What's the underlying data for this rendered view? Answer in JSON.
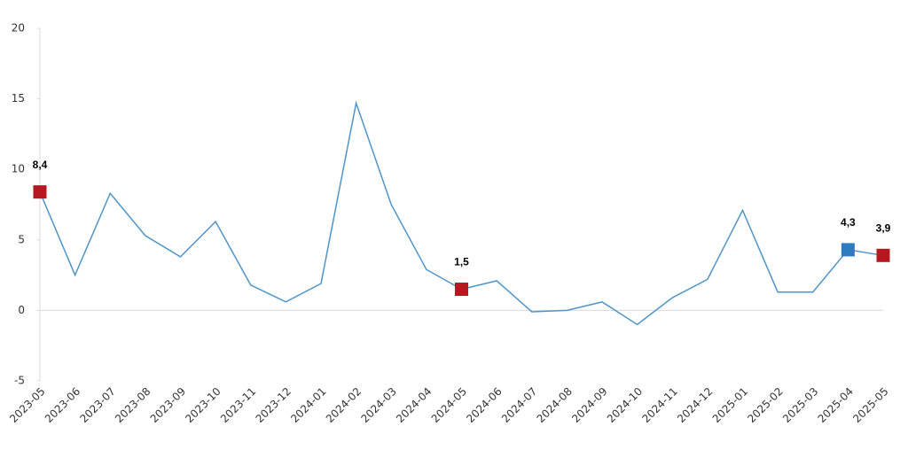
{
  "chart_data": {
    "type": "line",
    "categories": [
      "2023-05",
      "2023-06",
      "2023-07",
      "2023-08",
      "2023-09",
      "2023-10",
      "2023-11",
      "2023-12",
      "2024-01",
      "2024-02",
      "2024-03",
      "2024-04",
      "2024-05",
      "2024-06",
      "2024-07",
      "2024-08",
      "2024-09",
      "2024-10",
      "2024-11",
      "2024-12",
      "2025-01",
      "2025-02",
      "2025-03",
      "2025-04",
      "2025-05"
    ],
    "series": [
      {
        "color": "#4f95c8",
        "values": [
          8.4,
          2.5,
          8.3,
          5.3,
          3.8,
          6.3,
          1.8,
          0.6,
          1.9,
          14.7,
          7.5,
          2.9,
          1.5,
          2.1,
          -0.1,
          0.0,
          0.6,
          -1.0,
          0.9,
          2.2,
          7.1,
          1.3,
          1.3,
          4.3,
          3.9
        ],
        "value_labels": [
          "8,4",
          null,
          null,
          null,
          null,
          null,
          null,
          null,
          null,
          null,
          null,
          null,
          "1,5",
          null,
          null,
          null,
          null,
          null,
          null,
          null,
          null,
          null,
          null,
          "4,3",
          "3,9"
        ],
        "marker_colors": [
          "#b5191f",
          null,
          null,
          null,
          null,
          null,
          null,
          null,
          null,
          null,
          null,
          null,
          "#b5191f",
          null,
          null,
          null,
          null,
          null,
          null,
          null,
          null,
          null,
          null,
          "#2e7cc0",
          "#b5191f"
        ]
      }
    ],
    "ylim": [
      -5,
      20
    ],
    "yticks": [
      -5,
      0,
      5,
      10,
      15,
      20
    ]
  }
}
